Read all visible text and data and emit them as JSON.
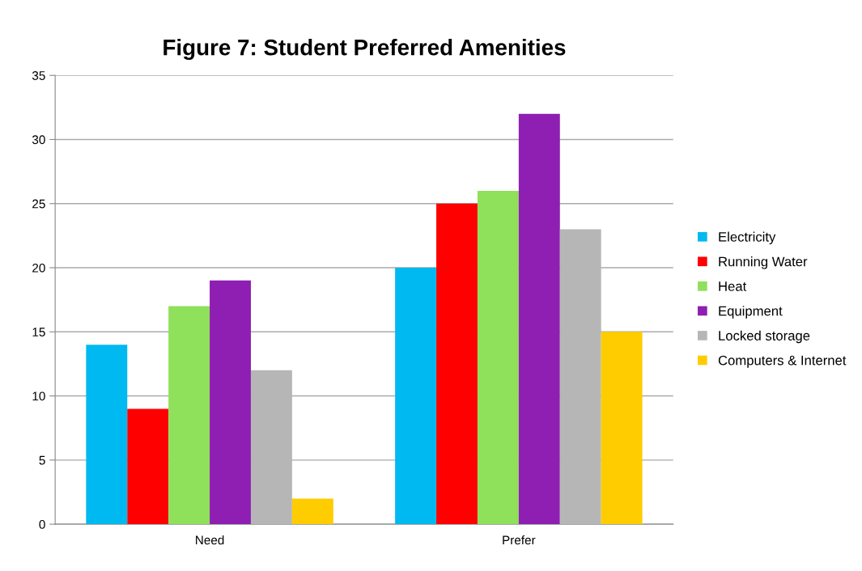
{
  "chart_data": {
    "type": "bar",
    "title": "Figure 7: Student Preferred Amenities",
    "categories": [
      "Need",
      "Prefer"
    ],
    "series": [
      {
        "name": "Electricity",
        "color": "#00b9f1",
        "values": [
          14,
          20
        ]
      },
      {
        "name": "Running Water",
        "color": "#ff0000",
        "values": [
          9,
          25
        ]
      },
      {
        "name": "Heat",
        "color": "#8fe05a",
        "values": [
          17,
          26
        ]
      },
      {
        "name": "Equipment",
        "color": "#8e1fb2",
        "values": [
          19,
          32
        ]
      },
      {
        "name": "Locked storage",
        "color": "#b6b6b6",
        "values": [
          12,
          23
        ]
      },
      {
        "name": "Computers & Internet",
        "color": "#ffcc00",
        "values": [
          2,
          15
        ]
      }
    ],
    "ylim": [
      0,
      35
    ],
    "yticks": [
      0,
      5,
      10,
      15,
      20,
      25,
      30,
      35
    ],
    "grid": "y",
    "legend": "right"
  }
}
